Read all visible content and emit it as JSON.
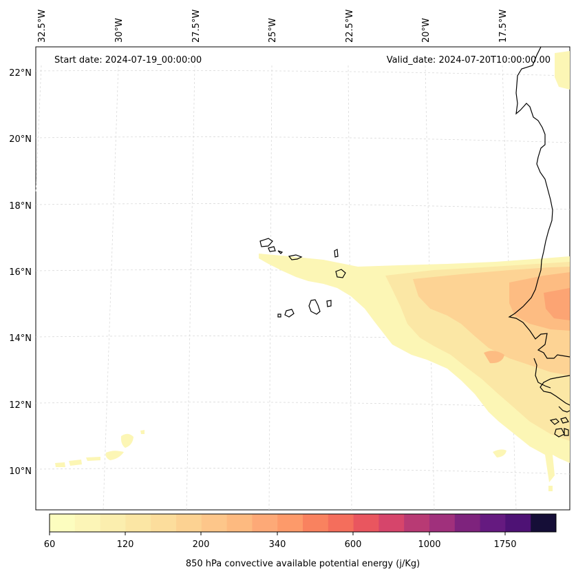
{
  "map": {
    "start_label": "Start date: 2024-07-19_00:00:00",
    "valid_label": "Valid_date: 2024-07-20T10:00:00.00",
    "lon_labels": [
      "32.5°W",
      "30°W",
      "27.5°W",
      "25°W",
      "22.5°W",
      "20°W",
      "17.5°W"
    ],
    "lat_labels": [
      "22°N",
      "20°N",
      "18°N",
      "16°N",
      "14°N",
      "12°N",
      "10°N"
    ],
    "coastline_color": "#000000",
    "gridline_color": "#d3d3d3"
  },
  "colorbar": {
    "label": "850 hPa convective available potential energy (j/Kg)",
    "tick_labels": [
      "60",
      "120",
      "200",
      "340",
      "600",
      "1000",
      "1750"
    ],
    "colors": [
      "#fcfdbf",
      "#fcf5b7",
      "#fbeeae",
      "#fbe6a4",
      "#fcdd9c",
      "#fcd292",
      "#fdc68a",
      "#fdba80",
      "#fda977",
      "#fd9a6a",
      "#f9825f",
      "#f46e5c",
      "#e9565f",
      "#d6456b",
      "#b83a74",
      "#a0307c",
      "#7e237d",
      "#651a80",
      "#4e1275",
      "#150e37"
    ],
    "colormap": "magma_r"
  }
}
